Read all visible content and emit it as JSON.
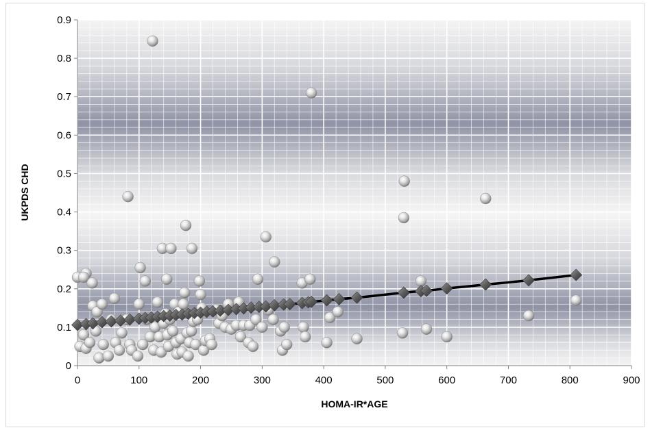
{
  "chart_data": {
    "type": "scatter",
    "xlabel": "HOMA-IR*AGE",
    "ylabel": "UKPDS CHD",
    "xlim": [
      0,
      900
    ],
    "ylim": [
      0,
      0.9
    ],
    "x_ticks": [
      0,
      100,
      200,
      300,
      400,
      500,
      600,
      700,
      800,
      900
    ],
    "y_ticks": [
      0,
      0.1,
      0.2,
      0.3,
      0.4,
      0.5,
      0.6,
      0.7,
      0.8,
      0.9
    ],
    "x_tick_labels": [
      "0",
      "100",
      "200",
      "300",
      "400",
      "500",
      "600",
      "700",
      "800",
      "900"
    ],
    "y_tick_labels": [
      "0",
      "0.1",
      "0.2",
      "0.3",
      "0.4",
      "0.5",
      "0.6",
      "0.7",
      "0.8",
      "0.9"
    ],
    "grid": true,
    "legend": "none",
    "colors": {
      "points": "#c8c8c8",
      "fit_line": "#000000",
      "fit_markers": "#666666",
      "band_dark": "#8c90a3",
      "band_light": "#f2f2f2"
    },
    "series": [
      {
        "kind": "observed",
        "marker": "sphere",
        "points": [
          [
            0,
            0.23
          ],
          [
            14,
            0.24
          ],
          [
            10,
            0.23
          ],
          [
            24,
            0.215
          ],
          [
            4,
            0.05
          ],
          [
            14,
            0.045
          ],
          [
            10,
            0.08
          ],
          [
            20,
            0.06
          ],
          [
            25,
            0.155
          ],
          [
            30,
            0.09
          ],
          [
            32,
            0.14
          ],
          [
            35,
            0.02
          ],
          [
            40,
            0.16
          ],
          [
            42,
            0.055
          ],
          [
            50,
            0.025
          ],
          [
            55,
            0.12
          ],
          [
            60,
            0.175
          ],
          [
            62,
            0.06
          ],
          [
            68,
            0.04
          ],
          [
            72,
            0.085
          ],
          [
            80,
            0.12
          ],
          [
            82,
            0.44
          ],
          [
            85,
            0.055
          ],
          [
            88,
            0.04
          ],
          [
            98,
            0.025
          ],
          [
            100,
            0.16
          ],
          [
            102,
            0.255
          ],
          [
            106,
            0.055
          ],
          [
            110,
            0.22
          ],
          [
            112,
            0.12
          ],
          [
            118,
            0.075
          ],
          [
            122,
            0.845
          ],
          [
            124,
            0.04
          ],
          [
            126,
            0.1
          ],
          [
            130,
            0.165
          ],
          [
            133,
            0.075
          ],
          [
            136,
            0.035
          ],
          [
            138,
            0.305
          ],
          [
            140,
            0.11
          ],
          [
            143,
            0.135
          ],
          [
            145,
            0.225
          ],
          [
            146,
            0.08
          ],
          [
            148,
            0.05
          ],
          [
            150,
            0.12
          ],
          [
            152,
            0.305
          ],
          [
            155,
            0.09
          ],
          [
            158,
            0.16
          ],
          [
            160,
            0.06
          ],
          [
            162,
            0.03
          ],
          [
            165,
            0.14
          ],
          [
            168,
            0.07
          ],
          [
            170,
            0.035
          ],
          [
            172,
            0.16
          ],
          [
            174,
            0.19
          ],
          [
            176,
            0.365
          ],
          [
            178,
            0.085
          ],
          [
            180,
            0.025
          ],
          [
            182,
            0.06
          ],
          [
            185,
            0.09
          ],
          [
            186,
            0.305
          ],
          [
            188,
            0.115
          ],
          [
            192,
            0.055
          ],
          [
            195,
            0.12
          ],
          [
            198,
            0.22
          ],
          [
            200,
            0.185
          ],
          [
            202,
            0.15
          ],
          [
            205,
            0.04
          ],
          [
            208,
            0.065
          ],
          [
            215,
            0.07
          ],
          [
            218,
            0.055
          ],
          [
            225,
            0.145
          ],
          [
            230,
            0.11
          ],
          [
            235,
            0.13
          ],
          [
            240,
            0.1
          ],
          [
            245,
            0.16
          ],
          [
            250,
            0.095
          ],
          [
            258,
            0.105
          ],
          [
            262,
            0.165
          ],
          [
            265,
            0.075
          ],
          [
            270,
            0.105
          ],
          [
            278,
            0.06
          ],
          [
            280,
            0.105
          ],
          [
            285,
            0.05
          ],
          [
            290,
            0.12
          ],
          [
            293,
            0.225
          ],
          [
            300,
            0.1
          ],
          [
            306,
            0.335
          ],
          [
            310,
            0.145
          ],
          [
            318,
            0.12
          ],
          [
            320,
            0.27
          ],
          [
            330,
            0.09
          ],
          [
            333,
            0.04
          ],
          [
            336,
            0.1
          ],
          [
            340,
            0.055
          ],
          [
            365,
            0.215
          ],
          [
            367,
            0.1
          ],
          [
            370,
            0.075
          ],
          [
            378,
            0.225
          ],
          [
            380,
            0.71
          ],
          [
            405,
            0.06
          ],
          [
            410,
            0.125
          ],
          [
            423,
            0.14
          ],
          [
            454,
            0.07
          ],
          [
            528,
            0.085
          ],
          [
            530,
            0.385
          ],
          [
            531,
            0.48
          ],
          [
            558,
            0.22
          ],
          [
            567,
            0.095
          ],
          [
            600,
            0.075
          ],
          [
            663,
            0.435
          ],
          [
            733,
            0.13
          ],
          [
            810,
            0.17
          ]
        ]
      },
      {
        "kind": "fitted",
        "marker": "diamond",
        "points": [
          [
            0,
            0.106
          ],
          [
            14,
            0.108
          ],
          [
            25,
            0.11
          ],
          [
            40,
            0.113
          ],
          [
            55,
            0.115
          ],
          [
            70,
            0.117
          ],
          [
            85,
            0.12
          ],
          [
            100,
            0.122
          ],
          [
            110,
            0.124
          ],
          [
            120,
            0.125
          ],
          [
            130,
            0.127
          ],
          [
            140,
            0.129
          ],
          [
            150,
            0.13
          ],
          [
            160,
            0.132
          ],
          [
            170,
            0.133
          ],
          [
            180,
            0.135
          ],
          [
            190,
            0.137
          ],
          [
            200,
            0.138
          ],
          [
            210,
            0.14
          ],
          [
            220,
            0.141
          ],
          [
            232,
            0.143
          ],
          [
            245,
            0.145
          ],
          [
            258,
            0.147
          ],
          [
            270,
            0.149
          ],
          [
            282,
            0.151
          ],
          [
            295,
            0.153
          ],
          [
            306,
            0.154
          ],
          [
            320,
            0.157
          ],
          [
            335,
            0.159
          ],
          [
            345,
            0.16
          ],
          [
            365,
            0.163
          ],
          [
            375,
            0.165
          ],
          [
            380,
            0.166
          ],
          [
            405,
            0.17
          ],
          [
            425,
            0.173
          ],
          [
            454,
            0.177
          ],
          [
            530,
            0.19
          ],
          [
            558,
            0.194
          ],
          [
            567,
            0.195
          ],
          [
            600,
            0.201
          ],
          [
            663,
            0.211
          ],
          [
            733,
            0.222
          ],
          [
            810,
            0.236
          ]
        ]
      }
    ]
  }
}
